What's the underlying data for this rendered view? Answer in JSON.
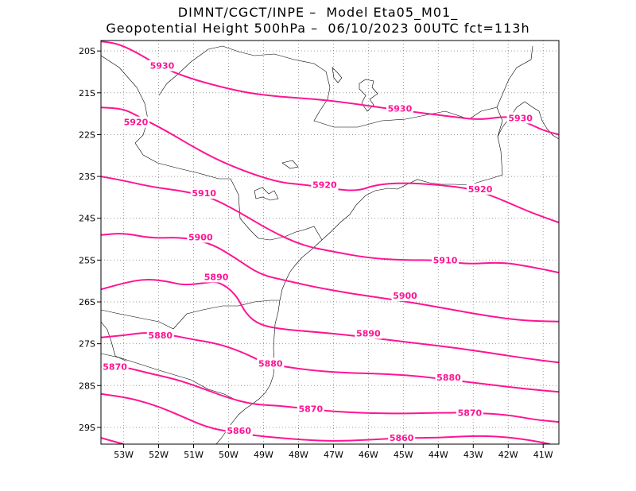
{
  "header": {
    "line1": "DIMNT/CGCT/INPE –  Model Eta05_M01_",
    "line2": "Geopotential Height 500hPa –  06/10/2023 00UTC fct=113h"
  },
  "map": {
    "lon_labels": [
      "53W",
      "52W",
      "51W",
      "50W",
      "49W",
      "48W",
      "47W",
      "46W",
      "45W",
      "44W",
      "43W",
      "42W",
      "41W"
    ],
    "lat_labels": [
      "20S",
      "21S",
      "22S",
      "23S",
      "24S",
      "25S",
      "26S",
      "27S",
      "28S",
      "29S"
    ],
    "lon_values": [
      -53,
      -52,
      -51,
      -50,
      -49,
      -48,
      -47,
      -46,
      -45,
      -44,
      -43,
      -42,
      -41
    ],
    "lat_values": [
      -20,
      -21,
      -22,
      -23,
      -24,
      -25,
      -26,
      -27,
      -28,
      -29
    ],
    "extent": {
      "lon_min": -53.65,
      "lon_max": -40.55,
      "lat_max": -19.75,
      "lat_min": -29.4
    },
    "grid": "dotted",
    "contour_color": "#ff1493"
  },
  "contours": [
    {
      "label": "5930",
      "points": [
        [
          -53.65,
          -19.77
        ],
        [
          -53.2,
          -19.82
        ],
        [
          -52.7,
          -20.0
        ],
        [
          -52.0,
          -20.35
        ],
        [
          -51.3,
          -20.6
        ],
        [
          -50.5,
          -20.8
        ],
        [
          -49.5,
          -21.0
        ],
        [
          -48.5,
          -21.1
        ],
        [
          -47.5,
          -21.15
        ],
        [
          -46.5,
          -21.25
        ],
        [
          -45.5,
          -21.37
        ],
        [
          -44.5,
          -21.48
        ],
        [
          -43.5,
          -21.58
        ],
        [
          -42.8,
          -21.65
        ],
        [
          -42.0,
          -21.55
        ],
        [
          -41.5,
          -21.7
        ],
        [
          -41.0,
          -21.9
        ],
        [
          -40.55,
          -22.0
        ]
      ],
      "labels_at": [
        [
          -51.9,
          -20.35
        ],
        [
          -45.1,
          -21.37
        ],
        [
          -41.65,
          -21.6
        ]
      ]
    },
    {
      "label": "5920",
      "points": [
        [
          -53.65,
          -21.35
        ],
        [
          -53.0,
          -21.38
        ],
        [
          -52.5,
          -21.6
        ],
        [
          -51.8,
          -21.9
        ],
        [
          -51.0,
          -22.3
        ],
        [
          -50.2,
          -22.65
        ],
        [
          -49.3,
          -22.95
        ],
        [
          -48.5,
          -23.15
        ],
        [
          -47.8,
          -23.2
        ],
        [
          -47.0,
          -23.3
        ],
        [
          -46.3,
          -23.35
        ],
        [
          -45.8,
          -23.2
        ],
        [
          -45.0,
          -23.15
        ],
        [
          -44.0,
          -23.2
        ],
        [
          -43.0,
          -23.3
        ],
        [
          -42.2,
          -23.55
        ],
        [
          -41.4,
          -23.85
        ],
        [
          -40.55,
          -24.1
        ]
      ],
      "labels_at": [
        [
          -52.65,
          -21.7
        ],
        [
          -47.25,
          -23.2
        ],
        [
          -42.8,
          -23.3
        ]
      ]
    },
    {
      "label": "5910",
      "points": [
        [
          -53.65,
          -23.0
        ],
        [
          -53.0,
          -23.1
        ],
        [
          -52.2,
          -23.25
        ],
        [
          -51.3,
          -23.35
        ],
        [
          -50.5,
          -23.5
        ],
        [
          -49.7,
          -23.85
        ],
        [
          -48.8,
          -24.3
        ],
        [
          -47.9,
          -24.65
        ],
        [
          -47.0,
          -24.8
        ],
        [
          -46.0,
          -24.95
        ],
        [
          -45.0,
          -25.0
        ],
        [
          -44.0,
          -25.0
        ],
        [
          -43.2,
          -25.1
        ],
        [
          -42.2,
          -25.05
        ],
        [
          -41.4,
          -25.15
        ],
        [
          -40.55,
          -25.3
        ]
      ],
      "labels_at": [
        [
          -50.7,
          -23.4
        ],
        [
          -43.8,
          -25.0
        ]
      ]
    },
    {
      "label": "5900",
      "points": [
        [
          -53.65,
          -24.4
        ],
        [
          -53.0,
          -24.35
        ],
        [
          -52.2,
          -24.48
        ],
        [
          -51.3,
          -24.45
        ],
        [
          -50.5,
          -24.6
        ],
        [
          -49.8,
          -24.95
        ],
        [
          -49.1,
          -25.35
        ],
        [
          -48.3,
          -25.5
        ],
        [
          -47.5,
          -25.65
        ],
        [
          -46.5,
          -25.8
        ],
        [
          -45.5,
          -25.92
        ],
        [
          -44.5,
          -26.05
        ],
        [
          -43.5,
          -26.2
        ],
        [
          -42.5,
          -26.35
        ],
        [
          -41.5,
          -26.45
        ],
        [
          -40.55,
          -26.47
        ]
      ],
      "labels_at": [
        [
          -50.8,
          -24.45
        ],
        [
          -44.95,
          -25.85
        ]
      ]
    },
    {
      "label": "5890",
      "points": [
        [
          -53.65,
          -25.7
        ],
        [
          -53.0,
          -25.55
        ],
        [
          -52.4,
          -25.45
        ],
        [
          -51.8,
          -25.5
        ],
        [
          -51.3,
          -25.6
        ],
        [
          -50.7,
          -25.55
        ],
        [
          -50.3,
          -25.5
        ],
        [
          -49.8,
          -25.8
        ],
        [
          -49.5,
          -26.3
        ],
        [
          -49.1,
          -26.55
        ],
        [
          -48.5,
          -26.65
        ],
        [
          -47.5,
          -26.72
        ],
        [
          -46.5,
          -26.8
        ],
        [
          -45.5,
          -26.9
        ],
        [
          -44.5,
          -27.0
        ],
        [
          -43.5,
          -27.1
        ],
        [
          -42.5,
          -27.22
        ],
        [
          -41.5,
          -27.35
        ],
        [
          -40.55,
          -27.45
        ]
      ],
      "labels_at": [
        [
          -50.35,
          -25.4
        ],
        [
          -46.0,
          -26.75
        ]
      ]
    },
    {
      "label": "5880",
      "points": [
        [
          -53.65,
          -26.85
        ],
        [
          -53.0,
          -26.8
        ],
        [
          -52.3,
          -26.72
        ],
        [
          -51.6,
          -26.8
        ],
        [
          -51.0,
          -26.9
        ],
        [
          -50.3,
          -27.0
        ],
        [
          -49.6,
          -27.2
        ],
        [
          -49.0,
          -27.45
        ],
        [
          -48.4,
          -27.55
        ],
        [
          -47.5,
          -27.65
        ],
        [
          -46.5,
          -27.7
        ],
        [
          -45.5,
          -27.72
        ],
        [
          -44.5,
          -27.78
        ],
        [
          -43.5,
          -27.88
        ],
        [
          -42.5,
          -27.98
        ],
        [
          -41.5,
          -28.08
        ],
        [
          -40.55,
          -28.15
        ]
      ],
      "labels_at": [
        [
          -51.95,
          -26.8
        ],
        [
          -48.8,
          -27.47
        ],
        [
          -43.7,
          -27.8
        ]
      ]
    },
    {
      "label": "5870",
      "points": [
        [
          -53.65,
          -27.55
        ],
        [
          -53.0,
          -27.55
        ],
        [
          -52.3,
          -27.7
        ],
        [
          -51.5,
          -27.85
        ],
        [
          -50.8,
          -28.05
        ],
        [
          -50.0,
          -28.3
        ],
        [
          -49.3,
          -28.45
        ],
        [
          -48.6,
          -28.48
        ],
        [
          -47.8,
          -28.55
        ],
        [
          -47.0,
          -28.62
        ],
        [
          -46.0,
          -28.66
        ],
        [
          -45.0,
          -28.67
        ],
        [
          -44.0,
          -28.65
        ],
        [
          -43.0,
          -28.65
        ],
        [
          -42.0,
          -28.7
        ],
        [
          -41.2,
          -28.82
        ],
        [
          -40.55,
          -28.87
        ]
      ],
      "labels_at": [
        [
          -53.25,
          -27.55
        ],
        [
          -47.65,
          -28.55
        ],
        [
          -43.1,
          -28.65
        ]
      ]
    },
    {
      "label": "5860",
      "points": [
        [
          -53.65,
          -28.2
        ],
        [
          -52.8,
          -28.3
        ],
        [
          -52.0,
          -28.5
        ],
        [
          -51.3,
          -28.75
        ],
        [
          -50.6,
          -29.0
        ],
        [
          -50.0,
          -29.1
        ],
        [
          -49.4,
          -29.18
        ],
        [
          -48.6,
          -29.25
        ],
        [
          -47.8,
          -29.3
        ],
        [
          -47.0,
          -29.33
        ],
        [
          -46.0,
          -29.3
        ],
        [
          -45.0,
          -29.25
        ],
        [
          -44.0,
          -29.25
        ],
        [
          -43.0,
          -29.2
        ],
        [
          -42.2,
          -29.22
        ],
        [
          -41.4,
          -29.3
        ],
        [
          -40.8,
          -29.4
        ]
      ],
      "labels_at": [
        [
          -49.7,
          -29.08
        ],
        [
          -45.05,
          -29.25
        ]
      ]
    },
    {
      "label": "",
      "points": [
        [
          -53.65,
          -29.25
        ],
        [
          -53.0,
          -29.4
        ]
      ],
      "labels_at": []
    }
  ]
}
